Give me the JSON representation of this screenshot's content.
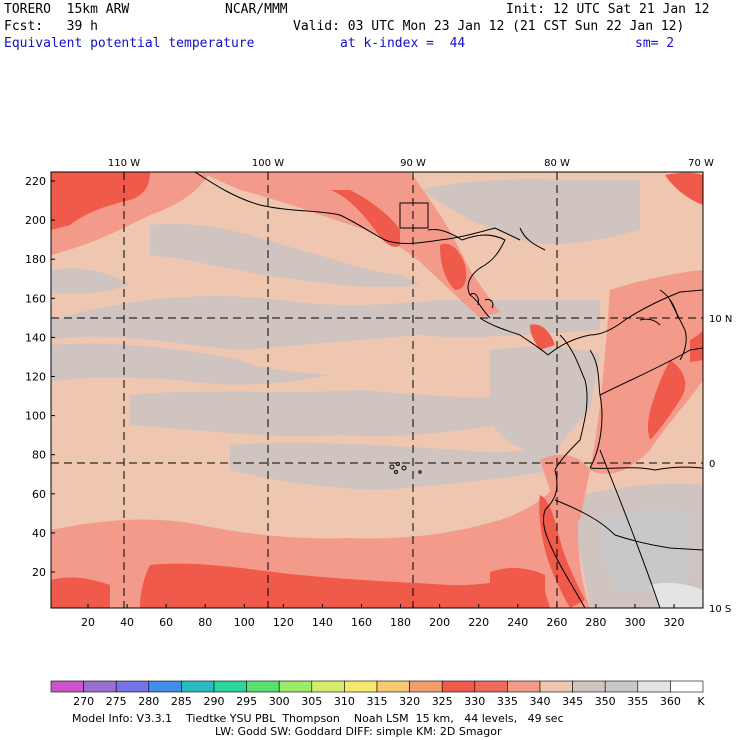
{
  "header": {
    "model": "TORERO  15km ARW",
    "center": "NCAR/MMM",
    "init": "Init: 12 UTC Sat 21 Jan 12",
    "fcst": "Fcst:   39 h",
    "valid": "Valid: 03 UTC Mon 23 Jan 12 (21 CST Sun 22 Jan 12)",
    "field": "Equivalent potential temperature",
    "level": "at k-index =  44",
    "smooth": "sm= 2"
  },
  "map": {
    "lon_labels": [
      "110 W",
      "100 W",
      "90 W",
      "80 W",
      "70 W"
    ],
    "lat_labels": [
      "10 N",
      "0",
      "10 S"
    ],
    "y_ticks": [
      "220",
      "200",
      "180",
      "160",
      "140",
      "120",
      "100",
      "80",
      "60",
      "40",
      "20"
    ],
    "x_ticks": [
      "20",
      "40",
      "60",
      "80",
      "100",
      "120",
      "140",
      "160",
      "180",
      "200",
      "220",
      "240",
      "260",
      "280",
      "300",
      "320"
    ]
  },
  "colorbar": {
    "labels": [
      "270",
      "275",
      "280",
      "285",
      "290",
      "295",
      "300",
      "305",
      "310",
      "315",
      "320",
      "325",
      "330",
      "335",
      "340",
      "345",
      "350",
      "355",
      "360"
    ],
    "unit": "K",
    "colors": [
      "#cc55cc",
      "#9a6fd0",
      "#7474e6",
      "#3f8fe8",
      "#28bcc0",
      "#2ad6a0",
      "#58e070",
      "#9ceb68",
      "#d4ee6c",
      "#f6e86e",
      "#f6c870",
      "#f39e6c",
      "#ef5a4a",
      "#ee6a5a",
      "#f39a8a",
      "#efc6b0",
      "#cfc4c0",
      "#c8c8c8",
      "#e4e4e4",
      "#ffffff"
    ]
  },
  "footer": {
    "line1": "Model Info: V3.3.1    Tiedtke YSU PBL  Thompson    Noah LSM  15 km,   44 levels,   49 sec",
    "line2": "LW: Godd SW: Goddard DIFF: simple KM: 2D Smagor"
  }
}
